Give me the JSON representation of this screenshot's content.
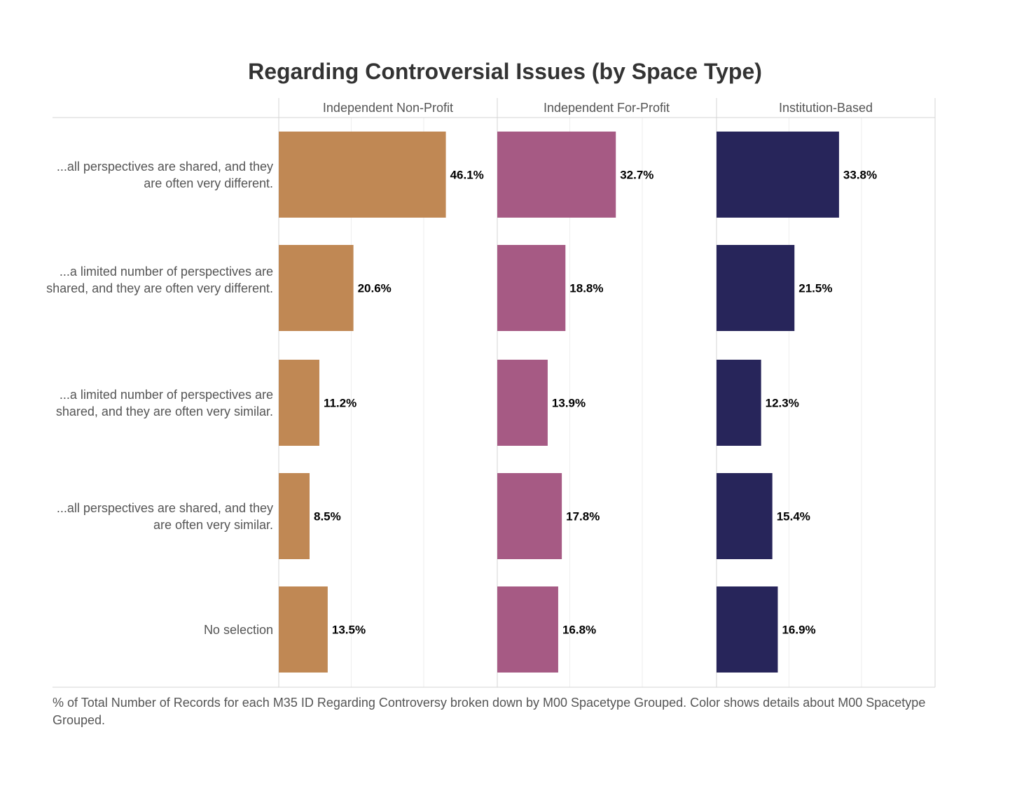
{
  "chart_data": {
    "type": "bar",
    "orientation": "horizontal",
    "title": "Regarding Controversial Issues (by Space Type)",
    "categories": [
      "...all perspectives are shared, and they are often very different.",
      "...a limited number of perspectives are shared, and they are often very different.",
      "...a limited number of perspectives are shared, and they are often very similar.",
      "...all perspectives are shared, and they are often very similar.",
      "No selection"
    ],
    "series": [
      {
        "name": "Independent Non-Profit",
        "color": "#c08854",
        "values": [
          46.1,
          20.6,
          11.2,
          8.5,
          13.5
        ]
      },
      {
        "name": "Independent For-Profit",
        "color": "#a65a84",
        "values": [
          32.7,
          18.8,
          13.9,
          17.8,
          16.8
        ]
      },
      {
        "name": "Institution-Based",
        "color": "#27255a",
        "values": [
          33.8,
          21.5,
          12.3,
          15.4,
          16.9
        ]
      }
    ],
    "value_format": "percent_1dp",
    "xlim": [
      0,
      60
    ],
    "grid": true,
    "legend": "none",
    "caption": "% of Total Number of Records for each M35 ID Regarding Controversy broken down by M00 Spacetype Grouped.  Color shows details about M00 Spacetype Grouped."
  }
}
